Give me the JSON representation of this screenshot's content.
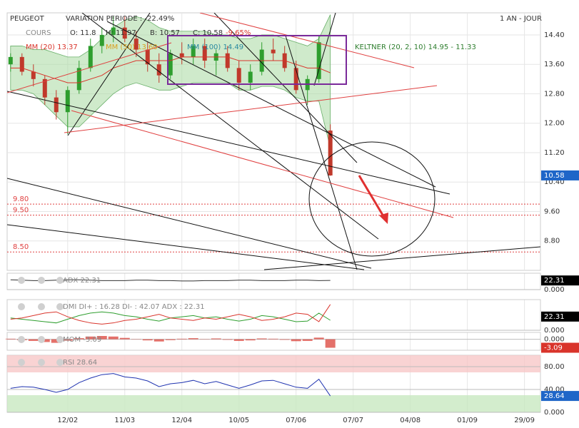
{
  "chart_data": {
    "type": "candlestick",
    "title": "PEUGEOT",
    "subtitle": "VARIATION PERIODE : -22.49%",
    "period": "1 AN - JOUR",
    "legend": [
      "COURS",
      "O: 11.8",
      "H: 11.97",
      "B: 10.57",
      "C: 10.58",
      "-9.65%",
      "MM (20) 13.37",
      "MM (50) 13.60",
      "MM (100) 14.49",
      "KELTNER (20, 2, 10) 14.95 - 11.33"
    ],
    "open": [
      13.6,
      13.8,
      13.4,
      13.2,
      12.7,
      12.3,
      12.9,
      13.5,
      14.1,
      14.4,
      14.6,
      14.3,
      14.0,
      13.6,
      13.3,
      13.9,
      13.8,
      14.1,
      13.7,
      13.9,
      13.5,
      13.1,
      13.4,
      14.0,
      13.9,
      13.5,
      12.9,
      13.2,
      11.8
    ],
    "high": [
      13.9,
      13.9,
      13.6,
      13.3,
      12.9,
      13.0,
      13.7,
      14.3,
      14.6,
      14.9,
      14.9,
      14.5,
      14.2,
      13.9,
      14.0,
      14.2,
      14.3,
      14.3,
      14.0,
      14.1,
      13.7,
      13.6,
      14.2,
      14.3,
      14.1,
      13.7,
      13.3,
      14.4,
      11.97
    ],
    "low": [
      13.4,
      13.3,
      13.0,
      12.5,
      12.1,
      11.7,
      12.8,
      13.4,
      13.9,
      14.2,
      14.2,
      13.8,
      13.4,
      13.1,
      13.2,
      13.6,
      13.6,
      13.5,
      13.3,
      13.4,
      12.9,
      12.9,
      13.3,
      13.7,
      13.4,
      12.8,
      12.5,
      13.1,
      10.57
    ],
    "close": [
      13.8,
      13.4,
      13.2,
      12.7,
      12.3,
      12.9,
      13.5,
      14.1,
      14.4,
      14.6,
      14.3,
      14.0,
      13.6,
      13.3,
      13.9,
      13.8,
      14.1,
      13.7,
      13.9,
      13.5,
      13.1,
      13.4,
      14.0,
      13.9,
      13.5,
      12.9,
      13.2,
      14.2,
      10.58
    ],
    "up_color": "#2e9e2e",
    "down_color": "#c0392b",
    "mm20": {
      "color": "#d9342b",
      "values": [
        13.5,
        13.5,
        13.4,
        13.3,
        13.2,
        13.1,
        13.1,
        13.2,
        13.3,
        13.5,
        13.6,
        13.7,
        13.7,
        13.7,
        13.7,
        13.8,
        13.8,
        13.8,
        13.8,
        13.8,
        13.7,
        13.7,
        13.7,
        13.7,
        13.7,
        13.6,
        13.5,
        13.5,
        13.37
      ]
    },
    "keltner": {
      "color": "#a8d8a0",
      "upper": [
        14.1,
        14.1,
        14.0,
        14.0,
        13.9,
        13.8,
        13.8,
        14.0,
        14.3,
        14.6,
        14.8,
        14.9,
        14.8,
        14.6,
        14.5,
        14.5,
        14.5,
        14.5,
        14.4,
        14.4,
        14.3,
        14.3,
        14.4,
        14.4,
        14.3,
        14.2,
        14.1,
        14.3,
        14.95
      ],
      "lower": [
        12.9,
        12.9,
        12.8,
        12.5,
        12.2,
        11.9,
        11.9,
        12.2,
        12.5,
        12.8,
        13.0,
        13.1,
        13.0,
        12.9,
        12.9,
        13.0,
        13.1,
        13.1,
        13.1,
        13.1,
        12.9,
        12.9,
        13.0,
        13.0,
        12.9,
        12.7,
        12.6,
        12.6,
        11.33
      ]
    },
    "last": 10.58,
    "levels": [
      {
        "value": 9.8,
        "label": "9.80"
      },
      {
        "value": 9.5,
        "label": "9.50"
      },
      {
        "value": 8.5,
        "label": "8.50"
      }
    ],
    "level_color": "#e04040",
    "ylim": [
      8.0,
      15.0
    ],
    "yticks": [
      {
        "value": 14.4,
        "label": "14.40"
      },
      {
        "value": 13.6,
        "label": "13.60"
      },
      {
        "value": 12.8,
        "label": "12.80"
      },
      {
        "value": 12.0,
        "label": "12.00"
      },
      {
        "value": 11.2,
        "label": "11.20"
      },
      {
        "value": 10.4,
        "label": "10.40"
      },
      {
        "value": 9.6,
        "label": "9.60"
      },
      {
        "value": 8.8,
        "label": "8.80"
      }
    ],
    "xlim": [
      -0.3,
      46.4
    ],
    "xticks": [
      {
        "value": 5,
        "label": "12/02"
      },
      {
        "value": 10,
        "label": "11/03"
      },
      {
        "value": 15,
        "label": "12/04"
      },
      {
        "value": 20,
        "label": "10/05"
      },
      {
        "value": 25,
        "label": "07/06"
      },
      {
        "value": 30,
        "label": "07/07"
      },
      {
        "value": 35,
        "label": "04/08"
      },
      {
        "value": 40,
        "label": "01/09"
      },
      {
        "value": 45,
        "label": "29/09"
      }
    ],
    "grid": true,
    "panels": [
      {
        "type": "adx",
        "label": "ADX 22.31",
        "ylim": [
          0,
          40
        ],
        "yticks": [
          {
            "value": 0,
            "label": "0.000"
          }
        ],
        "last": 22.31,
        "tag_color": "#000000",
        "series": [
          {
            "color": "#333333",
            "values": [
              24,
              23,
              22,
              22,
              23,
              24,
              24,
              23,
              22,
              22,
              22,
              23,
              23,
              22,
              22,
              21,
              21,
              22,
              22,
              22,
              23,
              23,
              22,
              22,
              22,
              23,
              23,
              22,
              22.31
            ]
          }
        ]
      },
      {
        "type": "dmi",
        "label": "DMI DI+ : 16.28 DI- : 42.07 ADX : 22.31",
        "ylim": [
          0,
          50
        ],
        "yticks": [
          {
            "value": 0,
            "label": "0.000"
          }
        ],
        "last": 22.31,
        "tag_color": "#000000",
        "series": [
          {
            "color": "#2e9e2e",
            "values": [
              20,
              18,
              16,
              14,
              12,
              18,
              24,
              28,
              30,
              28,
              24,
              22,
              18,
              15,
              20,
              22,
              24,
              20,
              22,
              18,
              15,
              18,
              24,
              22,
              18,
              14,
              15,
              28,
              16.28
            ]
          },
          {
            "color": "#d9342b",
            "values": [
              18,
              20,
              24,
              28,
              30,
              22,
              16,
              12,
              10,
              12,
              16,
              18,
              22,
              26,
              20,
              18,
              16,
              20,
              18,
              22,
              26,
              22,
              16,
              18,
              22,
              28,
              26,
              14,
              42.07
            ]
          }
        ]
      },
      {
        "type": "mom",
        "label": "MOM -3.09",
        "ylim": [
          -4,
          2.5
        ],
        "yticks": [
          {
            "value": 0,
            "label": "0.000"
          }
        ],
        "last": -3.09,
        "tag_color": "#d9342b",
        "series": [
          {
            "color": "#d9342b",
            "values": [
              0.2,
              -0.3,
              -0.6,
              -1.0,
              -1.3,
              -0.5,
              0.4,
              1.0,
              1.2,
              1.0,
              0.5,
              0.1,
              -0.4,
              -0.8,
              -0.3,
              0.2,
              0.4,
              0.1,
              0.3,
              -0.2,
              -0.6,
              -0.4,
              0.3,
              0.2,
              -0.2,
              -0.7,
              -0.6,
              0.6,
              -3.09
            ]
          }
        ]
      },
      {
        "type": "rsi",
        "label": "RSI 28.64",
        "ylim": [
          0,
          100
        ],
        "yticks": [
          {
            "value": 80,
            "label": "80.00"
          },
          {
            "value": 40,
            "label": "40.00"
          },
          {
            "value": 0,
            "label": "0.000"
          }
        ],
        "last": 28.64,
        "tag_color": "#1f66c8",
        "series": [
          {
            "color": "#1f33b0",
            "values": [
              42,
              45,
              44,
              40,
              35,
              40,
              52,
              60,
              66,
              68,
              62,
              60,
              55,
              45,
              50,
              52,
              56,
              50,
              54,
              48,
              42,
              48,
              55,
              56,
              50,
              44,
              42,
              58,
              28.64
            ]
          }
        ]
      }
    ]
  }
}
